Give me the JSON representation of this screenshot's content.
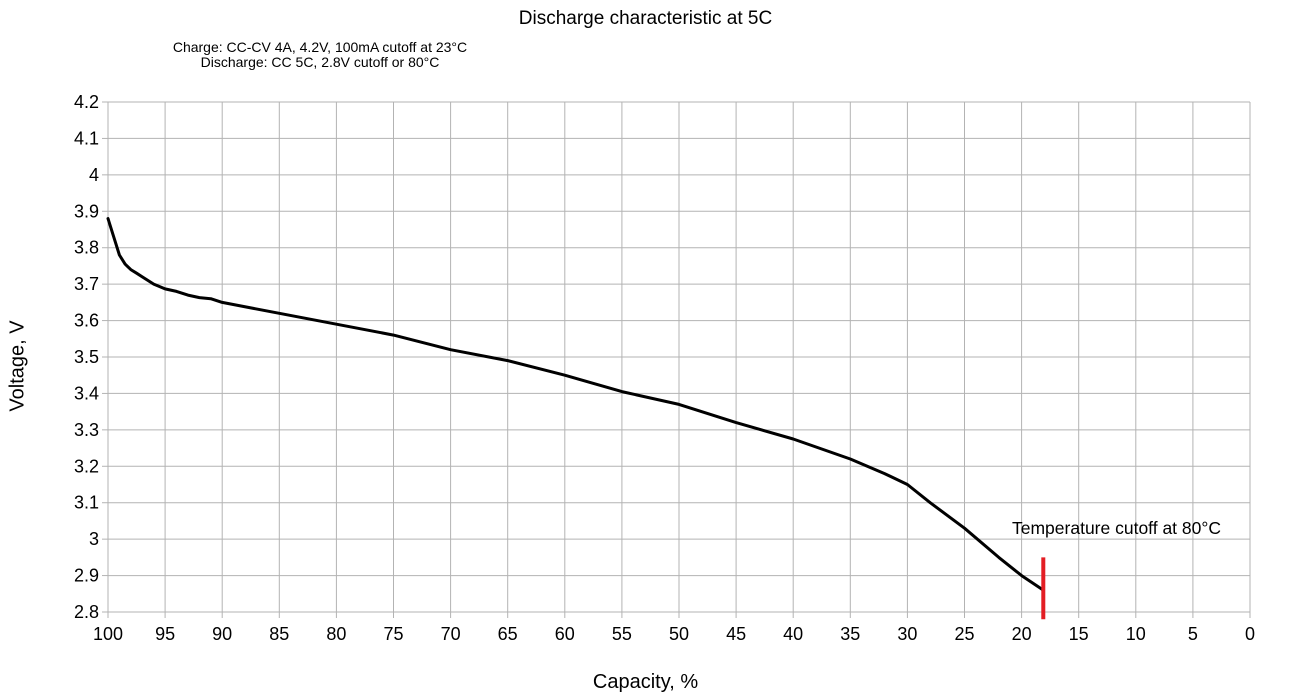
{
  "chart_data": {
    "type": "line",
    "title": "Discharge characteristic at 5C",
    "subtitle_lines": [
      "Charge: CC-CV 4A, 4.2V, 100mA cutoff at 23°C",
      "Discharge: CC 5C, 2.8V cutoff or 80°C"
    ],
    "xlabel": "Capacity, %",
    "ylabel": "Voltage, V",
    "xlim": [
      100,
      0
    ],
    "ylim": [
      2.8,
      4.2
    ],
    "x_reversed": true,
    "x_ticks": [
      100,
      95,
      90,
      85,
      80,
      75,
      70,
      65,
      60,
      55,
      50,
      45,
      40,
      35,
      30,
      25,
      20,
      15,
      10,
      5,
      0
    ],
    "y_ticks": [
      "4.2",
      "4.1",
      "4",
      "3.9",
      "3.8",
      "3.7",
      "3.6",
      "3.5",
      "3.4",
      "3.3",
      "3.2",
      "3.1",
      "3",
      "2.9",
      "2.8"
    ],
    "grid": true,
    "series": [
      {
        "color": "#000000",
        "x": [
          100,
          99.5,
          99,
          98.5,
          98,
          97.5,
          97,
          96,
          95,
          94,
          93,
          92,
          91,
          90,
          85,
          80,
          75,
          70,
          65,
          60,
          55,
          50,
          45,
          40,
          35,
          32,
          30,
          28,
          25,
          22,
          20,
          18.1
        ],
        "y": [
          3.88,
          3.83,
          3.78,
          3.755,
          3.74,
          3.73,
          3.72,
          3.7,
          3.687,
          3.68,
          3.67,
          3.663,
          3.66,
          3.65,
          3.62,
          3.59,
          3.56,
          3.52,
          3.49,
          3.45,
          3.405,
          3.37,
          3.32,
          3.275,
          3.22,
          3.18,
          3.15,
          3.1,
          3.03,
          2.95,
          2.9,
          2.86
        ]
      }
    ],
    "annotations": [
      {
        "text": "Temperature cutoff at 80°C",
        "x": 18.1,
        "y_from": 2.78,
        "y_to": 2.95,
        "color": "#e31e24"
      }
    ]
  }
}
